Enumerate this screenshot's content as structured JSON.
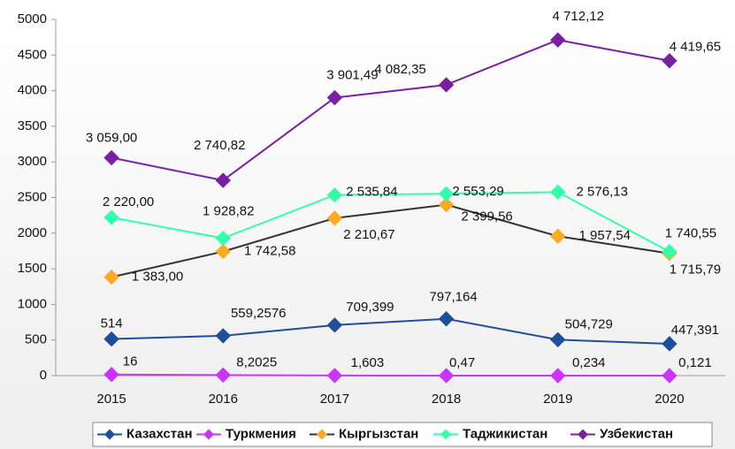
{
  "chart_data": {
    "type": "line",
    "categories": [
      "2015",
      "2016",
      "2017",
      "2018",
      "2019",
      "2020"
    ],
    "series": [
      {
        "name": "Казахстан",
        "color": "#1f4e9a",
        "values": [
          514,
          559.2576,
          709.399,
          797.164,
          504.729,
          447.391
        ],
        "value_labels": [
          "514",
          "559,2576",
          "709,399",
          "797,164",
          "504,729",
          "447,391"
        ]
      },
      {
        "name": "Туркмения",
        "color": "#cc33ff",
        "values": [
          16,
          8.2025,
          1.603,
          0.47,
          0.234,
          0.121
        ],
        "value_labels": [
          "16",
          "8,2025",
          "1,603",
          "0,47",
          "0,234",
          "0,121"
        ]
      },
      {
        "name": "Кыргызстан",
        "color": "#ffaa22",
        "line_color": "#333333",
        "values": [
          1383,
          1742.58,
          2210.67,
          2399.56,
          1957.54,
          1715.79
        ],
        "value_labels": [
          "1 383,00",
          "1 742,58",
          "2 210,67",
          "2 399,56",
          "1 957,54",
          "1 715,79"
        ]
      },
      {
        "name": "Таджикистан",
        "color": "#33ffaa",
        "values": [
          2220,
          1928.82,
          2535.84,
          2553.29,
          2576.13,
          1740.55
        ],
        "value_labels": [
          "2 220,00",
          "1 928,82",
          "2 535,84",
          "2 553,29",
          "2 576,13",
          "1 740,55"
        ]
      },
      {
        "name": "Узбекистан",
        "color": "#7a1fa2",
        "values": [
          3059,
          2740.82,
          3901.49,
          4082.35,
          4712.12,
          4419.65
        ],
        "value_labels": [
          "3 059,00",
          "2 740,82",
          "3 901,49",
          "4 082,35",
          "4 712,12",
          "4 419,65"
        ]
      }
    ],
    "ylim": [
      0,
      5000
    ],
    "yticks": [
      0,
      500,
      1000,
      1500,
      2000,
      2500,
      3000,
      3500,
      4000,
      4500,
      5000
    ],
    "grid": false,
    "legend": "bottom"
  }
}
